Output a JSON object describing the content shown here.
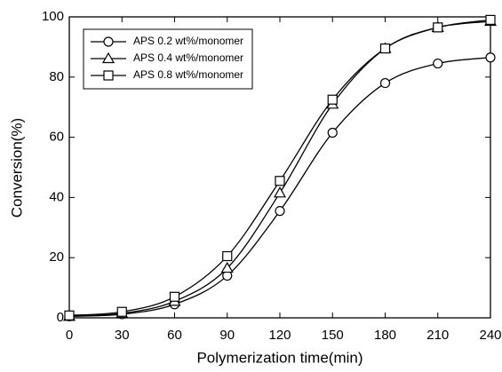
{
  "chart_data": {
    "type": "line",
    "x_label": "Polymerization time(min)",
    "y_label": "Conversion(%)",
    "x": [
      0,
      30,
      60,
      90,
      120,
      150,
      180,
      210,
      240
    ],
    "series": [
      {
        "name": "APS 0.2 wt%/monomer",
        "color": "#000000",
        "marker": "circle",
        "values": [
          0.5,
          1.2,
          4.5,
          14,
          35.5,
          61.5,
          78,
          84.5,
          86.5
        ]
      },
      {
        "name": "APS 0.4 wt%/monomer",
        "color": "#000000",
        "marker": "triangle",
        "values": [
          0.5,
          1.5,
          5.5,
          16.5,
          41.5,
          71,
          89.5,
          96.5,
          98.5
        ]
      },
      {
        "name": "APS 0.8 wt%/monomer",
        "color": "#000000",
        "marker": "square",
        "values": [
          0.8,
          2,
          7,
          20.5,
          45.5,
          72.5,
          89.5,
          96.5,
          99
        ]
      }
    ],
    "xlim": [
      0,
      240
    ],
    "xticks": [
      0,
      30,
      60,
      90,
      120,
      150,
      180,
      210,
      240
    ],
    "ylim": [
      0,
      100
    ],
    "yticks": [
      0,
      20,
      40,
      60,
      80,
      100
    ],
    "legend": "upper left",
    "grid": false
  }
}
